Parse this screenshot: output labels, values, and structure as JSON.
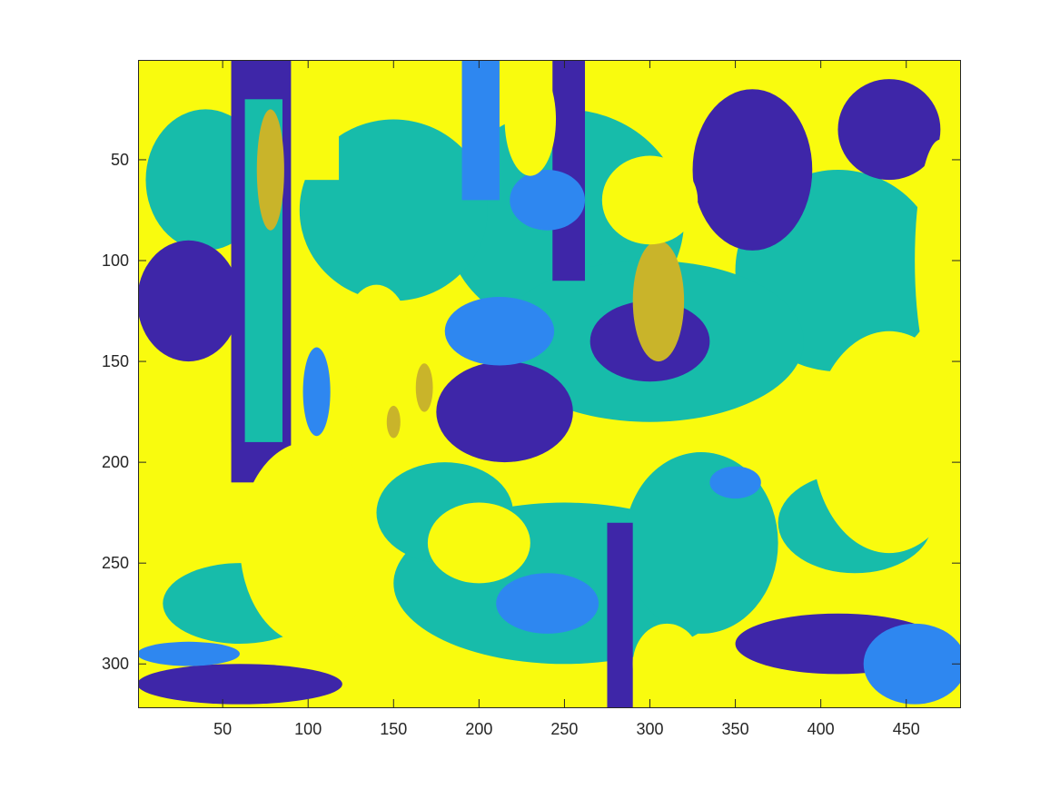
{
  "chart_data": {
    "type": "heatmap",
    "title": "",
    "xlabel": "",
    "ylabel": "",
    "xlim": [
      0.5,
      481.5
    ],
    "ylim": [
      0.5,
      321.5
    ],
    "y_direction": "reversed",
    "x_ticks": [
      50,
      100,
      150,
      200,
      250,
      300,
      350,
      400,
      450
    ],
    "y_ticks": [
      50,
      100,
      150,
      200,
      250,
      300
    ],
    "x_tick_labels": [
      "50",
      "100",
      "150",
      "200",
      "250",
      "300",
      "350",
      "400",
      "450"
    ],
    "y_tick_labels": [
      "50",
      "100",
      "150",
      "200",
      "250",
      "300"
    ],
    "grid": false,
    "legend": "none",
    "image_size": {
      "columns": 481,
      "rows": 321
    },
    "colormap": [
      "#3E26A8",
      "#2E87F0",
      "#17BCAA",
      "#C9B42A",
      "#F9FB0E"
    ],
    "regions": [
      {
        "class": 4,
        "kind": "rect",
        "x": [
          0.5,
          481.5
        ],
        "y": [
          0.5,
          321.5
        ]
      },
      {
        "class": 2,
        "kind": "ellipse",
        "cx": 250,
        "cy": 80,
        "rx": 70,
        "ry": 55
      },
      {
        "class": 2,
        "kind": "ellipse",
        "cx": 410,
        "cy": 105,
        "rx": 60,
        "ry": 50
      },
      {
        "class": 2,
        "kind": "ellipse",
        "cx": 300,
        "cy": 140,
        "rx": 90,
        "ry": 40
      },
      {
        "class": 2,
        "kind": "ellipse",
        "cx": 150,
        "cy": 75,
        "rx": 55,
        "ry": 45
      },
      {
        "class": 2,
        "kind": "ellipse",
        "cx": 40,
        "cy": 60,
        "rx": 35,
        "ry": 35
      },
      {
        "class": 2,
        "kind": "ellipse",
        "cx": 250,
        "cy": 260,
        "rx": 100,
        "ry": 40
      },
      {
        "class": 2,
        "kind": "ellipse",
        "cx": 330,
        "cy": 240,
        "rx": 45,
        "ry": 45
      },
      {
        "class": 2,
        "kind": "ellipse",
        "cx": 180,
        "cy": 225,
        "rx": 40,
        "ry": 25
      },
      {
        "class": 2,
        "kind": "ellipse",
        "cx": 420,
        "cy": 230,
        "rx": 45,
        "ry": 25
      },
      {
        "class": 2,
        "kind": "ellipse",
        "cx": 60,
        "cy": 270,
        "rx": 45,
        "ry": 20
      },
      {
        "class": 0,
        "kind": "ellipse",
        "cx": 300,
        "cy": 140,
        "rx": 35,
        "ry": 20
      },
      {
        "class": 0,
        "kind": "ellipse",
        "cx": 215,
        "cy": 175,
        "rx": 40,
        "ry": 25
      },
      {
        "class": 0,
        "kind": "ellipse",
        "cx": 360,
        "cy": 55,
        "rx": 35,
        "ry": 40
      },
      {
        "class": 0,
        "kind": "ellipse",
        "cx": 440,
        "cy": 35,
        "rx": 30,
        "ry": 25
      },
      {
        "class": 0,
        "kind": "ellipse",
        "cx": 410,
        "cy": 290,
        "rx": 60,
        "ry": 15
      },
      {
        "class": 0,
        "kind": "ellipse",
        "cx": 60,
        "cy": 310,
        "rx": 60,
        "ry": 10
      },
      {
        "class": 0,
        "kind": "ellipse",
        "cx": 30,
        "cy": 120,
        "rx": 30,
        "ry": 30
      },
      {
        "class": 0,
        "kind": "rect",
        "x": [
          55,
          90
        ],
        "y": [
          0.5,
          210
        ]
      },
      {
        "class": 0,
        "kind": "rect",
        "x": [
          275,
          290
        ],
        "y": [
          230,
          321.5
        ]
      },
      {
        "class": 0,
        "kind": "rect",
        "x": [
          243,
          262
        ],
        "y": [
          0.5,
          110
        ]
      },
      {
        "class": 2,
        "kind": "rect",
        "x": [
          63,
          85
        ],
        "y": [
          20,
          190
        ]
      },
      {
        "class": 1,
        "kind": "ellipse",
        "cx": 212,
        "cy": 135,
        "rx": 32,
        "ry": 17
      },
      {
        "class": 1,
        "kind": "rect",
        "x": [
          190,
          212
        ],
        "y": [
          0.5,
          70
        ]
      },
      {
        "class": 1,
        "kind": "ellipse",
        "cx": 240,
        "cy": 270,
        "rx": 30,
        "ry": 15
      },
      {
        "class": 1,
        "kind": "ellipse",
        "cx": 455,
        "cy": 300,
        "rx": 30,
        "ry": 20
      },
      {
        "class": 1,
        "kind": "ellipse",
        "cx": 240,
        "cy": 70,
        "rx": 22,
        "ry": 15
      },
      {
        "class": 1,
        "kind": "ellipse",
        "cx": 105,
        "cy": 165,
        "rx": 8,
        "ry": 22
      },
      {
        "class": 1,
        "kind": "ellipse",
        "cx": 30,
        "cy": 295,
        "rx": 30,
        "ry": 6
      },
      {
        "class": 1,
        "kind": "ellipse",
        "cx": 350,
        "cy": 210,
        "rx": 15,
        "ry": 8
      },
      {
        "class": 3,
        "kind": "ellipse",
        "cx": 305,
        "cy": 120,
        "rx": 15,
        "ry": 30
      },
      {
        "class": 3,
        "kind": "ellipse",
        "cx": 78,
        "cy": 55,
        "rx": 8,
        "ry": 30
      },
      {
        "class": 3,
        "kind": "ellipse",
        "cx": 168,
        "cy": 163,
        "rx": 5,
        "ry": 12
      },
      {
        "class": 3,
        "kind": "ellipse",
        "cx": 150,
        "cy": 180,
        "rx": 4,
        "ry": 8
      },
      {
        "class": 4,
        "kind": "rect",
        "x": [
          95,
          118
        ],
        "y": [
          0.5,
          60
        ]
      },
      {
        "class": 4,
        "kind": "rect",
        "x": [
          0.5,
          55
        ],
        "y": [
          190,
          250
        ]
      },
      {
        "class": 4,
        "kind": "ellipse",
        "cx": 100,
        "cy": 240,
        "rx": 40,
        "ry": 50
      },
      {
        "class": 4,
        "kind": "ellipse",
        "cx": 440,
        "cy": 190,
        "rx": 45,
        "ry": 55
      },
      {
        "class": 4,
        "kind": "ellipse",
        "cx": 470,
        "cy": 100,
        "rx": 15,
        "ry": 60
      },
      {
        "class": 4,
        "kind": "ellipse",
        "cx": 230,
        "cy": 30,
        "rx": 15,
        "ry": 28
      },
      {
        "class": 4,
        "kind": "ellipse",
        "cx": 300,
        "cy": 70,
        "rx": 28,
        "ry": 22
      },
      {
        "class": 4,
        "kind": "ellipse",
        "cx": 140,
        "cy": 140,
        "rx": 20,
        "ry": 28
      },
      {
        "class": 4,
        "kind": "ellipse",
        "cx": 200,
        "cy": 240,
        "rx": 30,
        "ry": 20
      },
      {
        "class": 4,
        "kind": "ellipse",
        "cx": 310,
        "cy": 300,
        "rx": 20,
        "ry": 20
      }
    ]
  }
}
